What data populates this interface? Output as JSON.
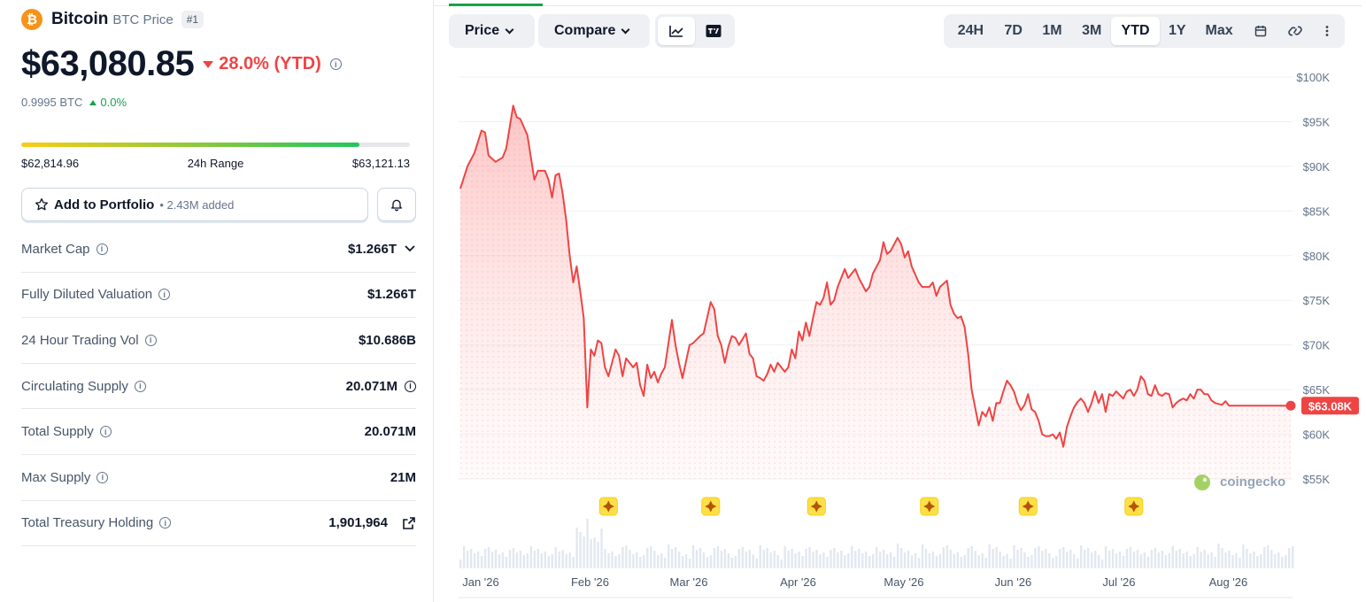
{
  "coin": {
    "name": "Bitcoin",
    "symbol_label": "BTC Price",
    "rank": "#1",
    "logo_glyph": "₿",
    "logo_color": "#f7931a"
  },
  "price": {
    "value": "$63,080.85",
    "change": "28.0% (YTD)",
    "change_direction": "down",
    "btc_value": "0.9995 BTC",
    "btc_change": "0.0%"
  },
  "range": {
    "low": "$62,814.96",
    "label": "24h Range",
    "high": "$63,121.13",
    "position_fraction": 0.87
  },
  "portfolio": {
    "label": "Add to Portfolio",
    "count": "• 2.43M added"
  },
  "stats": [
    {
      "label": "Market Cap",
      "value": "$1.266T",
      "extra_icon": "chevron-down-icon"
    },
    {
      "label": "Fully Diluted Valuation",
      "value": "$1.266T"
    },
    {
      "label": "24 Hour Trading Vol",
      "value": "$10.686B"
    },
    {
      "label": "Circulating Supply",
      "value": "20.071M",
      "extra_icon": "info-icon"
    },
    {
      "label": "Total Supply",
      "value": "20.071M"
    },
    {
      "label": "Max Supply",
      "value": "21M"
    },
    {
      "label": "Total Treasury Holding",
      "value": "1,901,964",
      "extra_icon": "external-link-icon"
    }
  ],
  "toolbar": {
    "price_label": "Price",
    "compare_label": "Compare",
    "ranges": [
      "24H",
      "7D",
      "1M",
      "3M",
      "YTD",
      "1Y",
      "Max"
    ],
    "selected_range": "YTD"
  },
  "colors": {
    "line": "#ef4444",
    "up": "#16a34a",
    "down": "#ef4444",
    "marker": "#fde047"
  },
  "watermark": "coingecko",
  "chart_data": {
    "type": "area",
    "ylim": [
      55000,
      100000
    ],
    "y_ticks": [
      100000,
      95000,
      90000,
      85000,
      80000,
      75000,
      70000,
      65000,
      60000,
      55000
    ],
    "y_tick_labels": [
      "$100K",
      "$95K",
      "$90K",
      "$85K",
      "$80K",
      "$75K",
      "$70K",
      "$65K",
      "$60K",
      "$55K"
    ],
    "x_range": [
      "2026-01-01",
      "2026-08-25"
    ],
    "x_ticks": [
      "2026-01-01",
      "2026-02-01",
      "2026-03-01",
      "2026-04-01",
      "2026-05-01",
      "2026-06-01",
      "2026-07-01",
      "2026-08-01"
    ],
    "x_tick_labels": [
      "Jan '26",
      "Feb '26",
      "Mar '26",
      "Apr '26",
      "May '26",
      "Jun '26",
      "Jul '26",
      "Aug '26"
    ],
    "current_label": "$63.08K",
    "series": [
      {
        "points": [
          [
            "2026-01-01",
            87500
          ],
          [
            "2026-01-03",
            90000
          ],
          [
            "2026-01-05",
            91500
          ],
          [
            "2026-01-07",
            94000
          ],
          [
            "2026-01-08",
            93800
          ],
          [
            "2026-01-09",
            91200
          ],
          [
            "2026-01-11",
            90500
          ],
          [
            "2026-01-13",
            91000
          ],
          [
            "2026-01-14",
            92000
          ],
          [
            "2026-01-16",
            96800
          ],
          [
            "2026-01-17",
            95500
          ],
          [
            "2026-01-18",
            95300
          ],
          [
            "2026-01-20",
            93500
          ],
          [
            "2026-01-21",
            91000
          ],
          [
            "2026-01-22",
            88500
          ],
          [
            "2026-01-23",
            89500
          ],
          [
            "2026-01-25",
            89500
          ],
          [
            "2026-01-26",
            88500
          ],
          [
            "2026-01-27",
            86500
          ],
          [
            "2026-01-28",
            89000
          ],
          [
            "2026-01-29",
            89200
          ],
          [
            "2026-01-30",
            87000
          ],
          [
            "2026-01-31",
            84000
          ],
          [
            "2026-02-01",
            80000
          ],
          [
            "2026-02-02",
            77000
          ],
          [
            "2026-02-03",
            78800
          ],
          [
            "2026-02-04",
            76000
          ],
          [
            "2026-02-05",
            73000
          ],
          [
            "2026-02-06",
            63000
          ],
          [
            "2026-02-07",
            69500
          ],
          [
            "2026-02-08",
            68800
          ],
          [
            "2026-02-09",
            70500
          ],
          [
            "2026-02-10",
            70200
          ],
          [
            "2026-02-11",
            67500
          ],
          [
            "2026-02-12",
            66500
          ],
          [
            "2026-02-14",
            69500
          ],
          [
            "2026-02-15",
            68800
          ],
          [
            "2026-02-16",
            66500
          ],
          [
            "2026-02-17",
            68500
          ],
          [
            "2026-02-19",
            67500
          ],
          [
            "2026-02-20",
            68000
          ],
          [
            "2026-02-21",
            65500
          ],
          [
            "2026-02-22",
            64300
          ],
          [
            "2026-02-23",
            67800
          ],
          [
            "2026-02-24",
            66300
          ],
          [
            "2026-02-25",
            67000
          ],
          [
            "2026-02-26",
            65800
          ],
          [
            "2026-02-27",
            66800
          ],
          [
            "2026-02-28",
            67500
          ],
          [
            "2026-03-02",
            72800
          ],
          [
            "2026-03-03",
            70000
          ],
          [
            "2026-03-04",
            68000
          ],
          [
            "2026-03-05",
            66300
          ],
          [
            "2026-03-07",
            70000
          ],
          [
            "2026-03-08",
            70200
          ],
          [
            "2026-03-10",
            71000
          ],
          [
            "2026-03-11",
            71300
          ],
          [
            "2026-03-13",
            74800
          ],
          [
            "2026-03-14",
            74000
          ],
          [
            "2026-03-15",
            71000
          ],
          [
            "2026-03-16",
            70000
          ],
          [
            "2026-03-17",
            68000
          ],
          [
            "2026-03-18",
            69800
          ],
          [
            "2026-03-19",
            71000
          ],
          [
            "2026-03-20",
            70800
          ],
          [
            "2026-03-21",
            70000
          ],
          [
            "2026-03-23",
            71300
          ],
          [
            "2026-03-24",
            69000
          ],
          [
            "2026-03-25",
            68500
          ],
          [
            "2026-03-26",
            66500
          ],
          [
            "2026-03-27",
            66300
          ],
          [
            "2026-03-28",
            66000
          ],
          [
            "2026-03-29",
            66700
          ],
          [
            "2026-03-30",
            67800
          ],
          [
            "2026-03-31",
            67000
          ],
          [
            "2026-04-01",
            68000
          ],
          [
            "2026-04-02",
            67500
          ],
          [
            "2026-04-03",
            67000
          ],
          [
            "2026-04-04",
            67500
          ],
          [
            "2026-04-05",
            69500
          ],
          [
            "2026-04-06",
            68500
          ],
          [
            "2026-04-07",
            71500
          ],
          [
            "2026-04-08",
            70500
          ],
          [
            "2026-04-09",
            72500
          ],
          [
            "2026-04-10",
            71000
          ],
          [
            "2026-04-11",
            73000
          ],
          [
            "2026-04-12",
            74800
          ],
          [
            "2026-04-13",
            74500
          ],
          [
            "2026-04-14",
            75300
          ],
          [
            "2026-04-15",
            77000
          ],
          [
            "2026-04-16",
            74500
          ],
          [
            "2026-04-17",
            75000
          ],
          [
            "2026-04-18",
            76500
          ],
          [
            "2026-04-20",
            78500
          ],
          [
            "2026-04-21",
            77500
          ],
          [
            "2026-04-23",
            78500
          ],
          [
            "2026-04-24",
            77500
          ],
          [
            "2026-04-26",
            76000
          ],
          [
            "2026-04-27",
            76500
          ],
          [
            "2026-04-28",
            78000
          ],
          [
            "2026-04-30",
            79500
          ],
          [
            "2026-05-01",
            81500
          ],
          [
            "2026-05-02",
            80200
          ],
          [
            "2026-05-03",
            80500
          ],
          [
            "2026-05-05",
            82000
          ],
          [
            "2026-05-06",
            81300
          ],
          [
            "2026-05-07",
            79800
          ],
          [
            "2026-05-08",
            80500
          ],
          [
            "2026-05-09",
            78800
          ],
          [
            "2026-05-11",
            77000
          ],
          [
            "2026-05-12",
            76500
          ],
          [
            "2026-05-14",
            76500
          ],
          [
            "2026-05-15",
            77000
          ],
          [
            "2026-05-16",
            75500
          ],
          [
            "2026-05-17",
            76500
          ],
          [
            "2026-05-19",
            77200
          ],
          [
            "2026-05-20",
            74500
          ],
          [
            "2026-05-21",
            73500
          ],
          [
            "2026-05-22",
            73000
          ],
          [
            "2026-05-23",
            73200
          ],
          [
            "2026-05-24",
            72000
          ],
          [
            "2026-05-25",
            69000
          ],
          [
            "2026-05-26",
            65000
          ],
          [
            "2026-05-27",
            63000
          ],
          [
            "2026-05-28",
            61000
          ],
          [
            "2026-05-29",
            62500
          ],
          [
            "2026-05-30",
            62000
          ],
          [
            "2026-05-31",
            63000
          ],
          [
            "2026-06-01",
            61500
          ],
          [
            "2026-06-02",
            63500
          ],
          [
            "2026-06-03",
            63500
          ],
          [
            "2026-06-04",
            64800
          ],
          [
            "2026-06-05",
            66000
          ],
          [
            "2026-06-06",
            65500
          ],
          [
            "2026-06-07",
            64800
          ],
          [
            "2026-06-08",
            63500
          ],
          [
            "2026-06-09",
            62700
          ],
          [
            "2026-06-10",
            63300
          ],
          [
            "2026-06-11",
            64500
          ],
          [
            "2026-06-12",
            62800
          ],
          [
            "2026-06-13",
            62500
          ],
          [
            "2026-06-14",
            61500
          ],
          [
            "2026-06-15",
            60000
          ],
          [
            "2026-06-16",
            59800
          ],
          [
            "2026-06-17",
            59800
          ],
          [
            "2026-06-18",
            60000
          ],
          [
            "2026-06-19",
            59500
          ],
          [
            "2026-06-20",
            60200
          ],
          [
            "2026-06-21",
            58600
          ],
          [
            "2026-06-22",
            60800
          ],
          [
            "2026-06-23",
            62000
          ],
          [
            "2026-06-24",
            63000
          ],
          [
            "2026-06-25",
            63600
          ],
          [
            "2026-06-26",
            64000
          ],
          [
            "2026-06-27",
            63500
          ],
          [
            "2026-06-28",
            62500
          ],
          [
            "2026-06-29",
            63500
          ],
          [
            "2026-06-30",
            64800
          ],
          [
            "2026-07-01",
            63500
          ],
          [
            "2026-07-02",
            64500
          ],
          [
            "2026-07-03",
            62500
          ],
          [
            "2026-07-04",
            64500
          ],
          [
            "2026-07-05",
            64300
          ],
          [
            "2026-07-06",
            64800
          ],
          [
            "2026-07-08",
            64000
          ],
          [
            "2026-07-09",
            64800
          ],
          [
            "2026-07-10",
            65000
          ],
          [
            "2026-07-11",
            64300
          ],
          [
            "2026-07-12",
            65000
          ],
          [
            "2026-07-13",
            66500
          ],
          [
            "2026-07-14",
            66000
          ],
          [
            "2026-07-15",
            64500
          ],
          [
            "2026-07-16",
            64300
          ],
          [
            "2026-07-17",
            65500
          ],
          [
            "2026-07-18",
            64500
          ],
          [
            "2026-07-19",
            64300
          ],
          [
            "2026-07-20",
            64600
          ],
          [
            "2026-07-21",
            64500
          ],
          [
            "2026-07-22",
            63000
          ],
          [
            "2026-07-23",
            63500
          ],
          [
            "2026-07-24",
            63800
          ],
          [
            "2026-07-25",
            64000
          ],
          [
            "2026-07-26",
            63800
          ],
          [
            "2026-07-27",
            64500
          ],
          [
            "2026-07-28",
            64000
          ],
          [
            "2026-07-29",
            65000
          ],
          [
            "2026-07-30",
            65000
          ],
          [
            "2026-07-31",
            64500
          ],
          [
            "2026-08-01",
            64500
          ],
          [
            "2026-08-02",
            63800
          ],
          [
            "2026-08-03",
            63500
          ],
          [
            "2026-08-05",
            63300
          ],
          [
            "2026-08-06",
            63700
          ],
          [
            "2026-08-07",
            63200
          ]
        ]
      }
    ],
    "event_markers": [
      "2026-02-12",
      "2026-03-13",
      "2026-04-12",
      "2026-05-14",
      "2026-06-11",
      "2026-07-11"
    ]
  }
}
